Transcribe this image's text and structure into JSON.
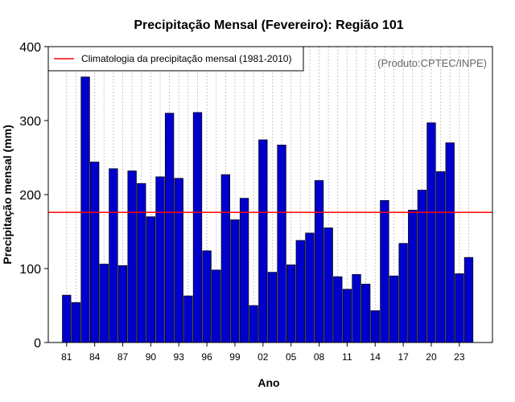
{
  "chart_data": {
    "type": "bar",
    "title": "Precipitação Mensal (Fevereiro): Região 101",
    "xlabel": "Ano",
    "ylabel": "Precipitação mensal (mm)",
    "ylim": [
      0,
      400
    ],
    "yticks": [
      0,
      100,
      200,
      300,
      400
    ],
    "grid": "vertical dotted",
    "credit": "(Produto:CPTEC/INPE)",
    "categories": [
      "81",
      "82",
      "83",
      "84",
      "85",
      "86",
      "87",
      "88",
      "89",
      "90",
      "91",
      "92",
      "93",
      "94",
      "95",
      "96",
      "97",
      "98",
      "99",
      "00",
      "01",
      "02",
      "03",
      "04",
      "05",
      "06",
      "07",
      "08",
      "09",
      "10",
      "11",
      "12",
      "13",
      "14",
      "15",
      "16",
      "17",
      "18",
      "19",
      "20",
      "21",
      "22",
      "23",
      "24"
    ],
    "xtick_labels": [
      "81",
      "84",
      "87",
      "90",
      "93",
      "96",
      "99",
      "02",
      "05",
      "08",
      "11",
      "14",
      "17",
      "20",
      "23"
    ],
    "values": [
      64,
      54,
      359,
      244,
      106,
      235,
      104,
      232,
      215,
      170,
      224,
      310,
      222,
      63,
      311,
      124,
      98,
      227,
      166,
      195,
      50,
      274,
      95,
      267,
      105,
      138,
      148,
      219,
      155,
      89,
      72,
      92,
      79,
      43,
      192,
      90,
      134,
      179,
      206,
      297,
      231,
      270,
      93,
      115
    ],
    "bar_color": "#0000cc",
    "reference_line": {
      "label": "Climatologia da precipitação mensal (1981-2010)",
      "value": 176,
      "color": "#ff0000"
    },
    "legend_position": "top-left"
  }
}
